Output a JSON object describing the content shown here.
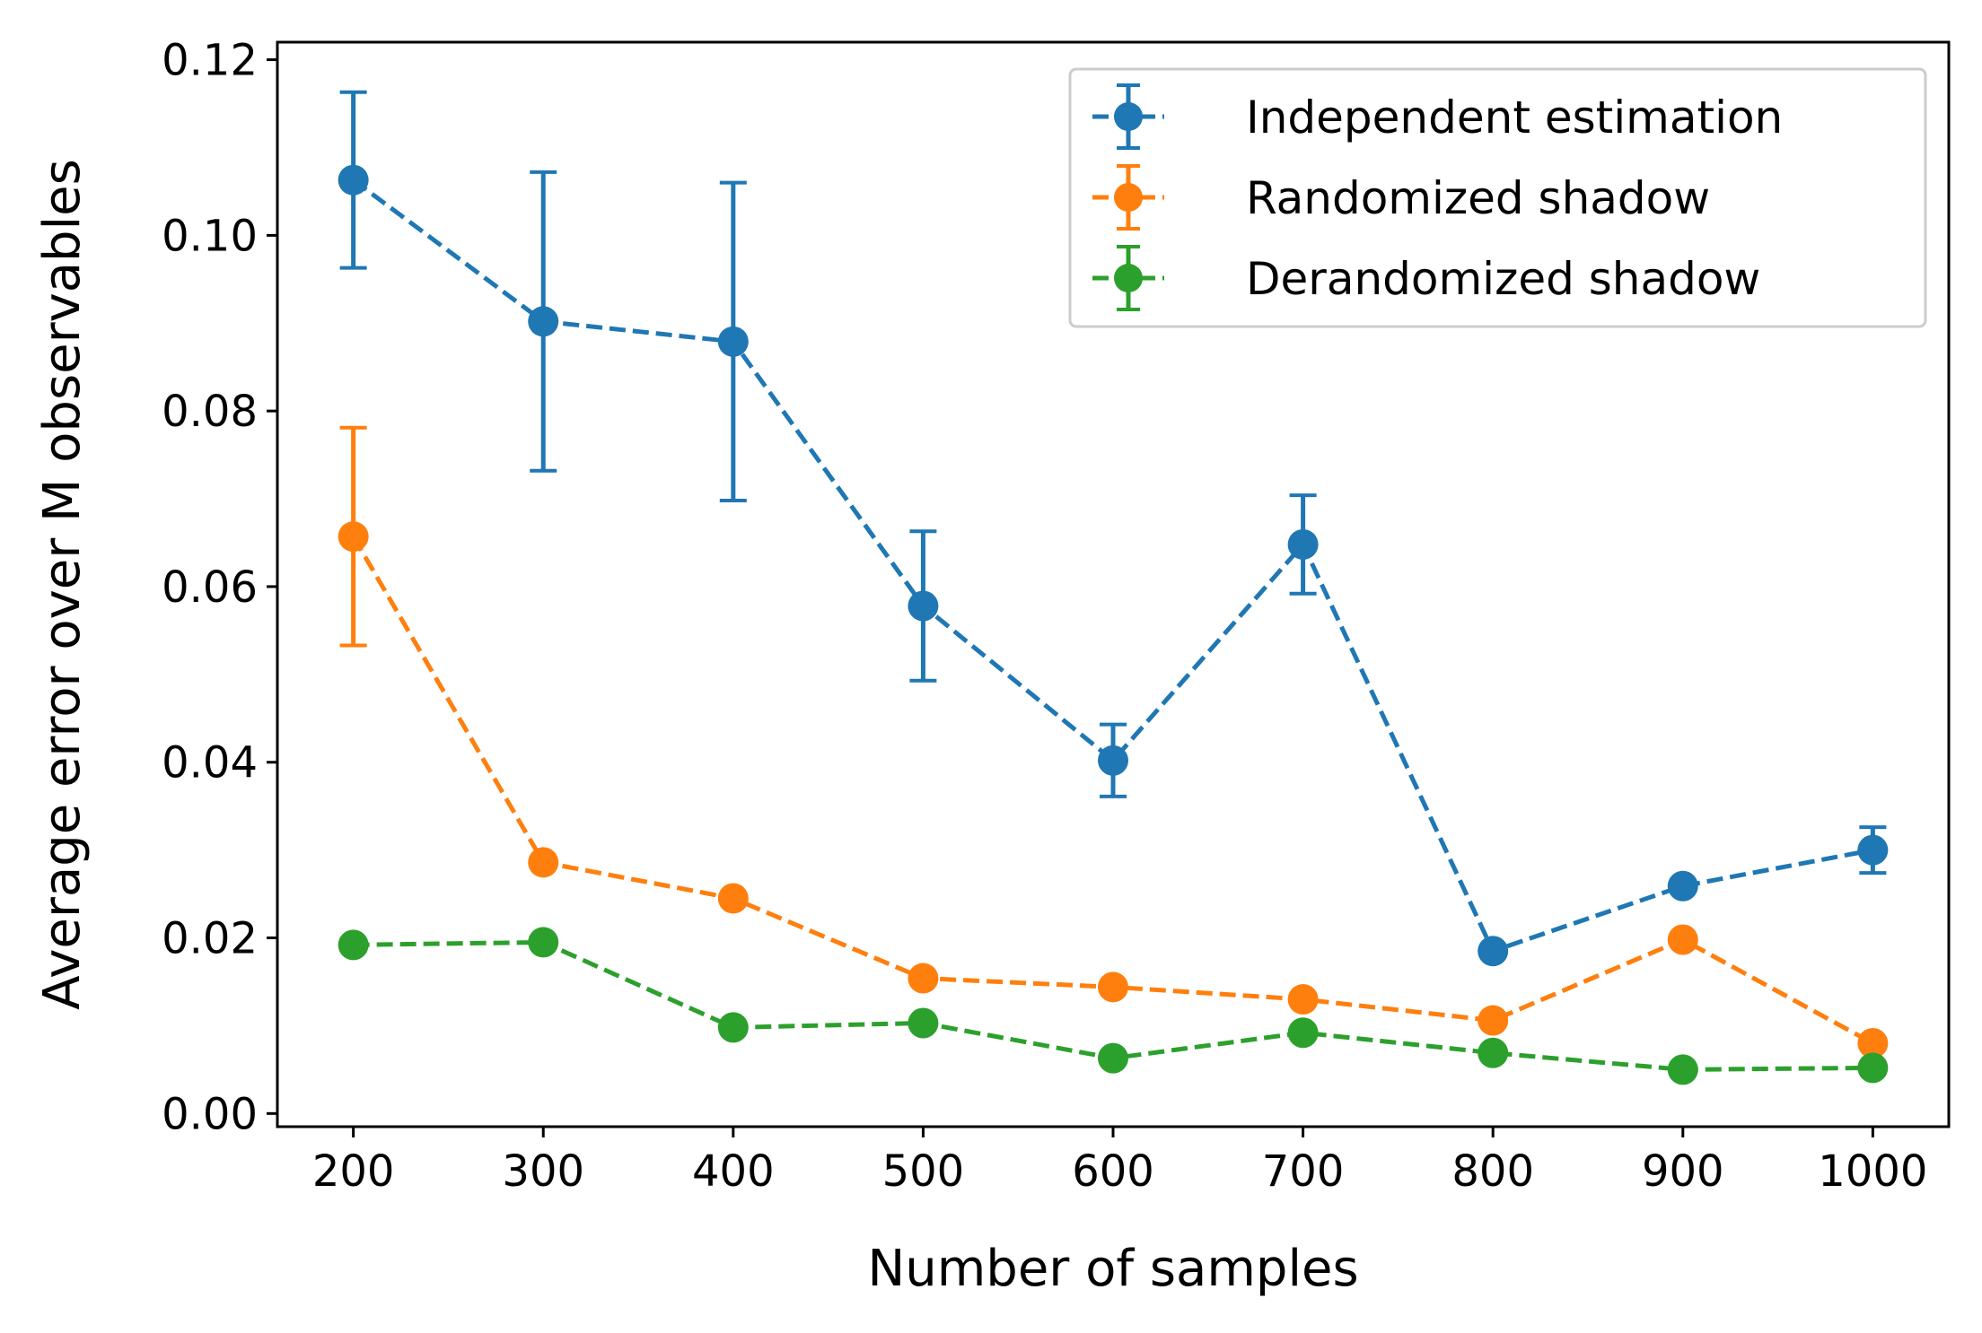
{
  "chart_data": {
    "type": "line",
    "title": "",
    "xlabel": "Number of samples",
    "ylabel": "Average error over M observables",
    "x": [
      200,
      300,
      400,
      500,
      600,
      700,
      800,
      900,
      1000
    ],
    "xlim": [
      160,
      1040
    ],
    "ylim": [
      -0.0015,
      0.122
    ],
    "xticks": [
      200,
      300,
      400,
      500,
      600,
      700,
      800,
      900,
      1000
    ],
    "xtick_labels": [
      "200",
      "300",
      "400",
      "500",
      "600",
      "700",
      "800",
      "900",
      "1000"
    ],
    "yticks": [
      0.0,
      0.02,
      0.04,
      0.06,
      0.08,
      0.1,
      0.12
    ],
    "ytick_labels": [
      "0.00",
      "0.02",
      "0.04",
      "0.06",
      "0.08",
      "0.10",
      "0.12"
    ],
    "grid": false,
    "legend_position": "top-right",
    "series": [
      {
        "name": "Independent estimation",
        "color": "#1f77b4",
        "values": [
          0.1063,
          0.0902,
          0.0879,
          0.0578,
          0.0402,
          0.0648,
          0.0185,
          0.0259,
          0.03
        ],
        "err": [
          0.01,
          0.017,
          0.0181,
          0.0085,
          0.0041,
          0.0056,
          0.0004,
          0.0004,
          0.0026
        ]
      },
      {
        "name": "Randomized shadow",
        "color": "#ff7f0e",
        "values": [
          0.0657,
          0.0286,
          0.0245,
          0.0154,
          0.0144,
          0.013,
          0.0106,
          0.0198,
          0.008
        ],
        "err": [
          0.0124,
          0.0003,
          0.0004,
          0.0002,
          0.0003,
          0.0002,
          0.0002,
          0.0004,
          0.0002
        ]
      },
      {
        "name": "Derandomized shadow",
        "color": "#2ca02c",
        "values": [
          0.0192,
          0.0195,
          0.0098,
          0.0103,
          0.0063,
          0.0092,
          0.0069,
          0.005,
          0.0052
        ],
        "err": [
          0.0002,
          0.0002,
          0.0002,
          0.0002,
          0.0002,
          0.0002,
          0.0002,
          0.0002,
          0.0002
        ]
      }
    ]
  }
}
